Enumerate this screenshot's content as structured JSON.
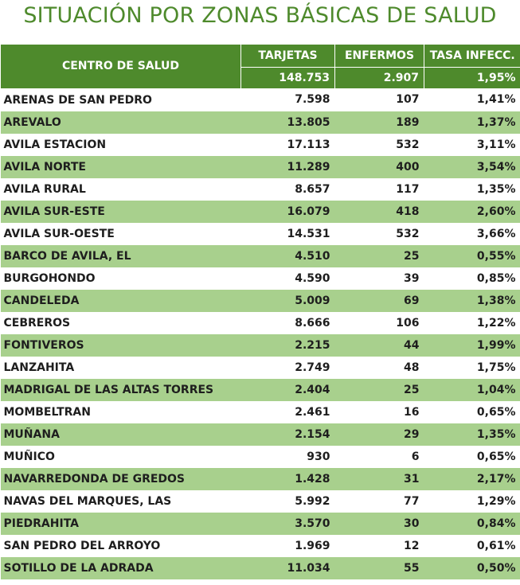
{
  "title": "SITUACIÓN POR ZONAS BÁSICAS DE SALUD",
  "header": {
    "centro": "CENTRO DE SALUD",
    "tarjetas": "TARJETAS",
    "enfermos": "ENFERMOS",
    "tasa": "TASA INFECC."
  },
  "totals": {
    "tarjetas": "148.753",
    "enfermos": "2.907",
    "tasa": "1,95%"
  },
  "rows": [
    {
      "name": "ARENAS DE SAN PEDRO",
      "tarjetas": "7.598",
      "enfermos": "107",
      "tasa": "1,41%"
    },
    {
      "name": "AREVALO",
      "tarjetas": "13.805",
      "enfermos": "189",
      "tasa": "1,37%"
    },
    {
      "name": "AVILA ESTACION",
      "tarjetas": "17.113",
      "enfermos": "532",
      "tasa": "3,11%"
    },
    {
      "name": "AVILA NORTE",
      "tarjetas": "11.289",
      "enfermos": "400",
      "tasa": "3,54%"
    },
    {
      "name": "AVILA RURAL",
      "tarjetas": "8.657",
      "enfermos": "117",
      "tasa": "1,35%"
    },
    {
      "name": "AVILA SUR-ESTE",
      "tarjetas": "16.079",
      "enfermos": "418",
      "tasa": "2,60%"
    },
    {
      "name": "AVILA SUR-OESTE",
      "tarjetas": "14.531",
      "enfermos": "532",
      "tasa": "3,66%"
    },
    {
      "name": "BARCO DE AVILA, EL",
      "tarjetas": "4.510",
      "enfermos": "25",
      "tasa": "0,55%"
    },
    {
      "name": "BURGOHONDO",
      "tarjetas": "4.590",
      "enfermos": "39",
      "tasa": "0,85%"
    },
    {
      "name": "CANDELEDA",
      "tarjetas": "5.009",
      "enfermos": "69",
      "tasa": "1,38%"
    },
    {
      "name": "CEBREROS",
      "tarjetas": "8.666",
      "enfermos": "106",
      "tasa": "1,22%"
    },
    {
      "name": "FONTIVEROS",
      "tarjetas": "2.215",
      "enfermos": "44",
      "tasa": "1,99%"
    },
    {
      "name": "LANZAHITA",
      "tarjetas": "2.749",
      "enfermos": "48",
      "tasa": "1,75%"
    },
    {
      "name": "MADRIGAL DE LAS ALTAS TORRES",
      "tarjetas": "2.404",
      "enfermos": "25",
      "tasa": "1,04%"
    },
    {
      "name": "MOMBELTRAN",
      "tarjetas": "2.461",
      "enfermos": "16",
      "tasa": "0,65%"
    },
    {
      "name": "MUÑANA",
      "tarjetas": "2.154",
      "enfermos": "29",
      "tasa": "1,35%"
    },
    {
      "name": "MUÑICO",
      "tarjetas": "930",
      "enfermos": "6",
      "tasa": "0,65%"
    },
    {
      "name": "NAVARREDONDA DE GREDOS",
      "tarjetas": "1.428",
      "enfermos": "31",
      "tasa": "2,17%"
    },
    {
      "name": "NAVAS DEL MARQUES, LAS",
      "tarjetas": "5.992",
      "enfermos": "77",
      "tasa": "1,29%"
    },
    {
      "name": "PIEDRAHITA",
      "tarjetas": "3.570",
      "enfermos": "30",
      "tasa": "0,84%"
    },
    {
      "name": "SAN PEDRO DEL ARROYO",
      "tarjetas": "1.969",
      "enfermos": "12",
      "tasa": "0,61%"
    },
    {
      "name": "SOTILLO DE LA ADRADA",
      "tarjetas": "11.034",
      "enfermos": "55",
      "tasa": "0,50%"
    }
  ]
}
